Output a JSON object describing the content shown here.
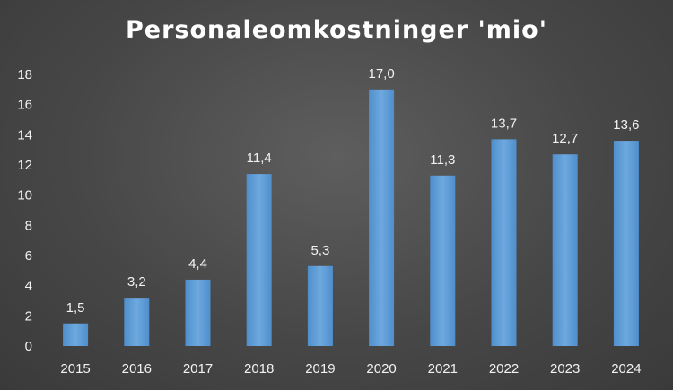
{
  "chart_data": {
    "type": "bar",
    "title": "Personaleomkostninger 'mio'",
    "categories": [
      "2015",
      "2016",
      "2017",
      "2018",
      "2019",
      "2020",
      "2021",
      "2022",
      "2023",
      "2024"
    ],
    "values": [
      1.5,
      3.2,
      4.4,
      11.4,
      5.3,
      17.0,
      11.3,
      13.7,
      12.7,
      13.6
    ],
    "data_labels": [
      "1,5",
      "3,2",
      "4,4",
      "11,4",
      "5,3",
      "17,0",
      "11,3",
      "13,7",
      "12,7",
      "13,6"
    ],
    "ylim": [
      0,
      18
    ],
    "yticks": [
      0,
      2,
      4,
      6,
      8,
      10,
      12,
      14,
      16,
      18
    ],
    "xlabel": "",
    "ylabel": "",
    "grid": false,
    "legend": "none",
    "colors": {
      "bar": "#5b9bd5",
      "bar_light": "#7aaee0",
      "text": "#f2f2f2",
      "background": "#474747"
    }
  }
}
